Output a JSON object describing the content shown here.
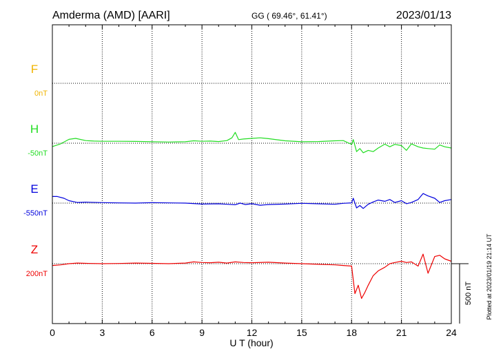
{
  "header": {
    "station": "Amderma (AMD)  [AARI]",
    "coords": "GG ( 69.46°,  61.41°)",
    "date": "2023/01/13"
  },
  "footer": {
    "plotted": "Plotted at 2023/01/19 21:14 UT"
  },
  "chart_data": {
    "type": "line",
    "xlabel": "U T (hour)",
    "xlim": [
      0,
      24
    ],
    "xticks": [
      "0",
      "3",
      "6",
      "9",
      "12",
      "15",
      "18",
      "21",
      "24"
    ],
    "scale_bar": {
      "label": "500 nT",
      "nT": 500
    },
    "components": [
      {
        "name": "F",
        "baseline": "0nT",
        "color": "#f0b400",
        "level": 0,
        "x": [],
        "y": []
      },
      {
        "name": "H",
        "baseline": "-50nT",
        "color": "#22dd22",
        "level": 1,
        "x": [
          0,
          0.5,
          1,
          1.4,
          2,
          2.5,
          3,
          4,
          5,
          6,
          7,
          8,
          8.5,
          9,
          9.5,
          10,
          10.5,
          10.8,
          11,
          11.2,
          11.5,
          12,
          12.5,
          13,
          14,
          15,
          16,
          17,
          17.5,
          18,
          18.1,
          18.3,
          18.5,
          18.7,
          19,
          19.3,
          19.6,
          20,
          20.3,
          20.6,
          21,
          21.3,
          21.6,
          22,
          22.3,
          22.6,
          23,
          23.3,
          23.6,
          24
        ],
        "y": [
          -28,
          -5,
          32,
          40,
          22,
          18,
          16,
          16,
          15,
          12,
          10,
          12,
          20,
          16,
          18,
          14,
          22,
          45,
          90,
          30,
          35,
          40,
          45,
          38,
          20,
          12,
          14,
          20,
          22,
          -10,
          30,
          -70,
          -45,
          -80,
          -60,
          -70,
          -40,
          -8,
          -30,
          -10,
          -20,
          -60,
          -5,
          -30,
          -40,
          -45,
          -50,
          -15,
          -30,
          -40
        ]
      },
      {
        "name": "E",
        "baseline": "-550nT",
        "color": "#0000dd",
        "level": 2,
        "x": [
          0,
          0.3,
          0.7,
          1,
          1.5,
          2,
          3,
          4,
          5,
          6,
          7,
          8,
          9,
          10,
          10.5,
          11,
          11.3,
          11.6,
          12,
          12.5,
          13,
          14,
          15,
          16,
          17,
          17.5,
          18,
          18.1,
          18.3,
          18.5,
          18.7,
          19,
          19.3,
          19.6,
          20,
          20.3,
          20.6,
          21,
          21.3,
          21.6,
          22,
          22.3,
          22.6,
          23,
          23.3,
          23.6,
          24
        ],
        "y": [
          55,
          55,
          40,
          20,
          5,
          8,
          4,
          2,
          0,
          4,
          2,
          0,
          -8,
          -6,
          -10,
          -14,
          0,
          -12,
          -5,
          -18,
          -12,
          -8,
          -2,
          -6,
          -10,
          -2,
          2,
          40,
          -40,
          -20,
          -45,
          -10,
          10,
          25,
          15,
          30,
          5,
          20,
          -5,
          5,
          30,
          80,
          60,
          40,
          5,
          20,
          30
        ]
      },
      {
        "name": "Z",
        "baseline": "200nT",
        "color": "#ee0000",
        "level": 3,
        "x": [
          0,
          0.5,
          1,
          1.5,
          2,
          3,
          4,
          5,
          6,
          7,
          8,
          8.5,
          9,
          9.5,
          10,
          10.5,
          11,
          11.5,
          12,
          13,
          14,
          15,
          16,
          17,
          17.5,
          18,
          18.2,
          18.4,
          18.6,
          18.8,
          19,
          19.3,
          19.6,
          20,
          20.3,
          20.6,
          21,
          21.3,
          21.6,
          22,
          22.3,
          22.6,
          23,
          23.3,
          23.6,
          24
        ],
        "y": [
          -15,
          -10,
          0,
          5,
          3,
          0,
          2,
          5,
          3,
          0,
          5,
          15,
          10,
          8,
          12,
          5,
          15,
          10,
          8,
          12,
          5,
          0,
          -5,
          -10,
          -15,
          -20,
          -250,
          -180,
          -290,
          -240,
          -180,
          -100,
          -60,
          -30,
          0,
          10,
          20,
          10,
          15,
          -20,
          80,
          -80,
          60,
          70,
          40,
          20
        ]
      }
    ]
  }
}
